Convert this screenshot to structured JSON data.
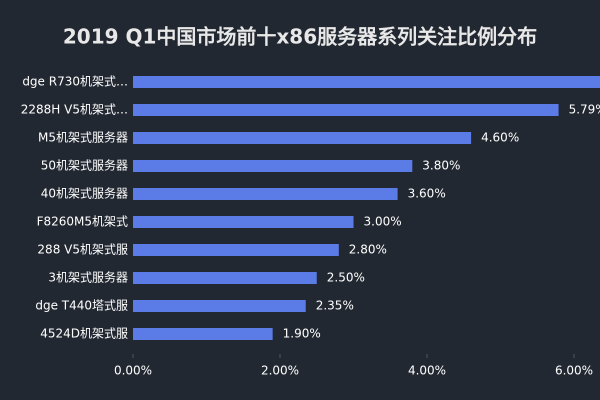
{
  "chart_data": {
    "type": "barh",
    "title": "2019 Q1中国市场前十x86服务器系列关注比例分布",
    "categories": [
      "dge R730机架式…",
      "2288H V5机架式…",
      "M5机架式服务器",
      "50机架式服务器",
      "40机架式服务器",
      "F8260M5机架式",
      "288 V5机架式服",
      "3机架式服务器",
      "dge T440塔式服",
      "4524D机架式服"
    ],
    "values": [
      6.4,
      5.79,
      4.6,
      3.8,
      3.6,
      3.0,
      2.8,
      2.5,
      2.35,
      1.9
    ],
    "value_labels": [
      null,
      "5.79%",
      "4.60%",
      "3.80%",
      "3.60%",
      "3.00%",
      "2.80%",
      "2.50%",
      "2.35%",
      "1.90%"
    ],
    "color": "#5b7ce6",
    "xlim": [
      0,
      6.4
    ],
    "xticks": [
      {
        "value": 0,
        "label": "0.00%"
      },
      {
        "value": 2,
        "label": "2.00%"
      },
      {
        "value": 4,
        "label": "4.00%"
      },
      {
        "value": 6,
        "label": "6.00%"
      }
    ]
  }
}
